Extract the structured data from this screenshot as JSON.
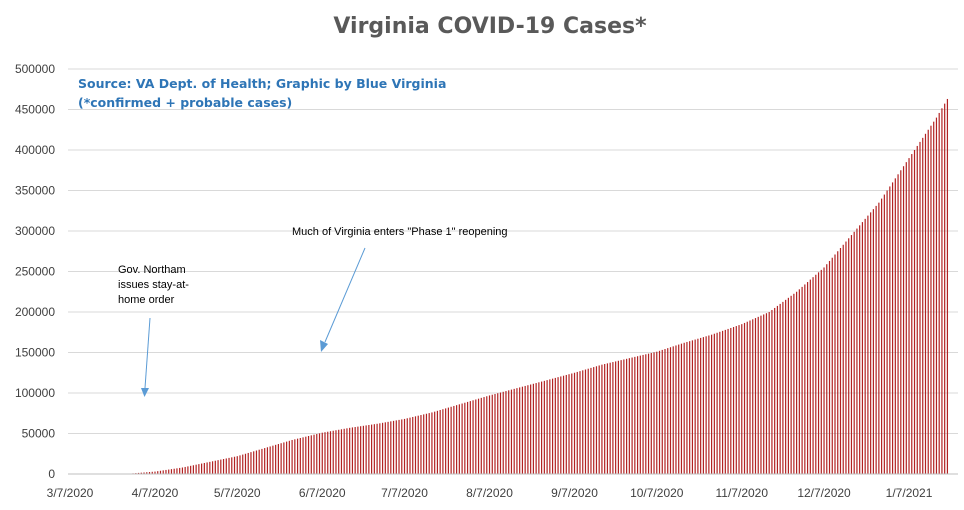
{
  "chart_data": {
    "type": "bar",
    "title": "Virginia COVID-19 Cases*",
    "source_lines": [
      "Source: VA Dept. of Health; Graphic by Blue Virginia",
      "(*confirmed + probable cases)"
    ],
    "xlabel": "",
    "ylabel": "",
    "ylim": [
      0,
      500000
    ],
    "y_ticks": [
      "0",
      "50000",
      "100000",
      "150000",
      "200000",
      "250000",
      "300000",
      "350000",
      "400000",
      "450000",
      "500000"
    ],
    "x_ticks": [
      "3/7/2020",
      "4/7/2020",
      "5/7/2020",
      "6/7/2020",
      "7/7/2020",
      "8/7/2020",
      "9/7/2020",
      "10/7/2020",
      "11/7/2020",
      "12/7/2020",
      "1/7/2021"
    ],
    "grid": true,
    "legend": "none",
    "bar_color": "#B22222",
    "series": [
      {
        "x": [
          "3/7/2020",
          "3/17/2020",
          "3/27/2020",
          "4/7/2020",
          "4/17/2020",
          "4/27/2020",
          "5/7/2020",
          "5/17/2020",
          "5/27/2020",
          "6/7/2020",
          "6/17/2020",
          "6/27/2020",
          "7/7/2020",
          "7/17/2020",
          "7/27/2020",
          "8/7/2020",
          "8/17/2020",
          "8/27/2020",
          "9/7/2020",
          "9/17/2020",
          "9/27/2020",
          "10/7/2020",
          "10/17/2020",
          "10/27/2020",
          "11/7/2020",
          "11/17/2020",
          "11/27/2020",
          "12/7/2020",
          "12/17/2020",
          "12/27/2020",
          "1/7/2021",
          "1/17/2021",
          "1/21/2021"
        ],
        "values": [
          0,
          0,
          0,
          3000,
          8000,
          15000,
          22000,
          32000,
          42000,
          51000,
          57000,
          62000,
          68000,
          76000,
          86000,
          97000,
          106000,
          115000,
          125000,
          135000,
          143000,
          151000,
          162000,
          172000,
          185000,
          200000,
          225000,
          255000,
          295000,
          335000,
          390000,
          440000,
          463000
        ]
      }
    ],
    "annotations": [
      {
        "lines": [
          "Gov. Northam",
          "issues stay-at-",
          "home order"
        ],
        "points_to": "3/30/2020"
      },
      {
        "lines": [
          "Much of Virginia enters \"Phase 1\" reopening"
        ],
        "points_to": "5/15/2020"
      }
    ]
  }
}
